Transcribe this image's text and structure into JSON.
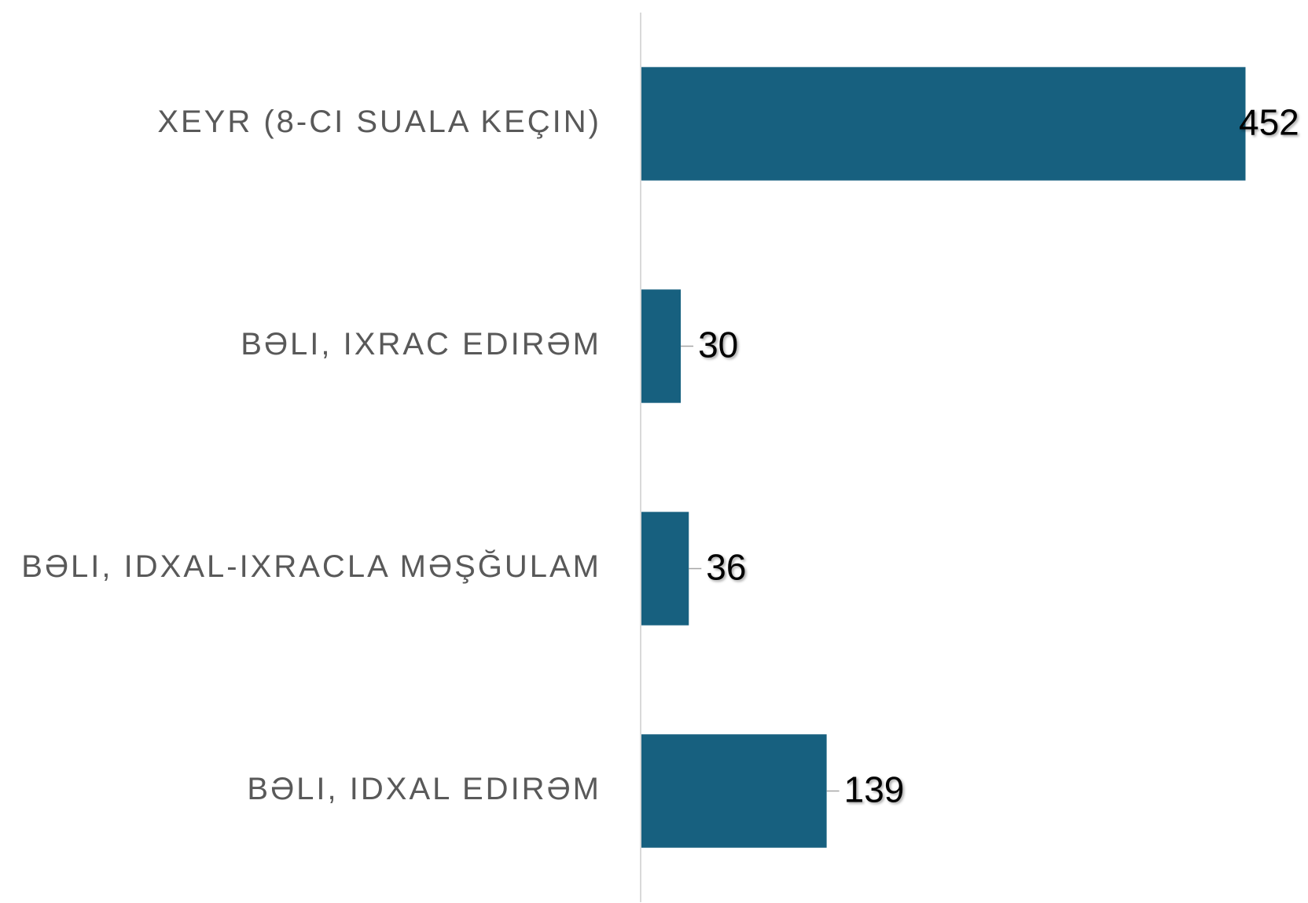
{
  "chart_data": {
    "type": "hbar",
    "categories": [
      "XEYR (8-CI SUALA KEÇIN)",
      "BƏLI, IXRAC EDIRƏM",
      "BƏLI, IDXAL-IXRACLA MƏŞĞULAM",
      "BƏLI, IDXAL EDIRƏM"
    ],
    "values": [
      452,
      30,
      36,
      139
    ],
    "color": "#17607f",
    "xlim": [
      0,
      494
    ]
  }
}
